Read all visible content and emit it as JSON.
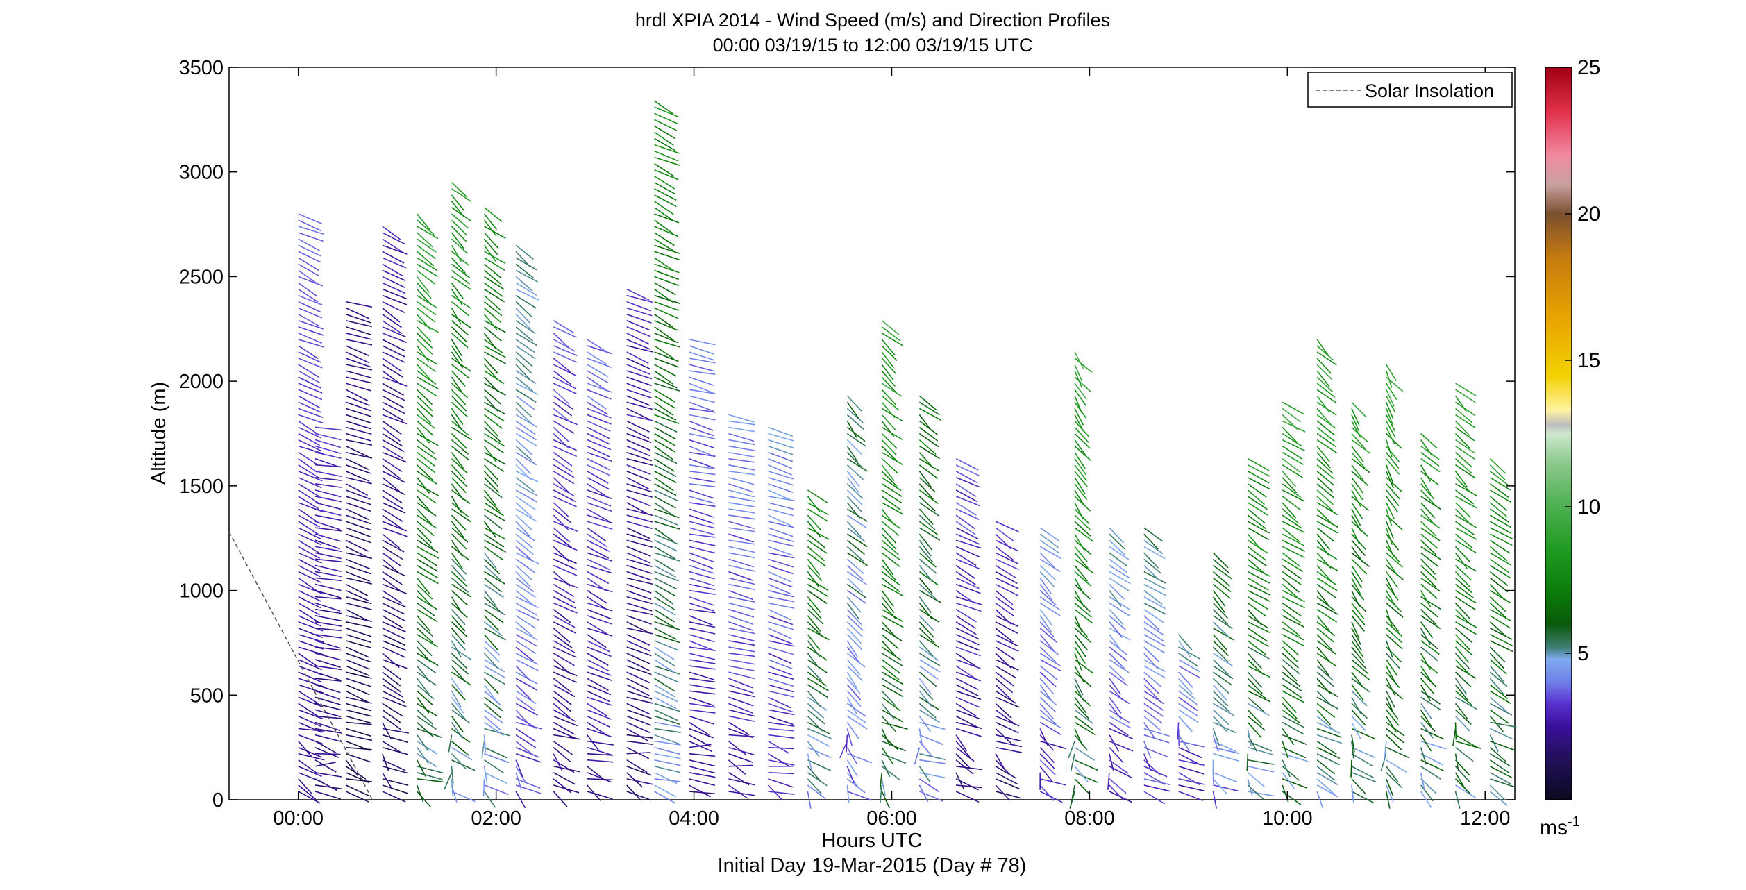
{
  "chart_data": {
    "type": "barb-profile",
    "title_line1": "hrdl XPIA 2014 - Wind Speed (m/s) and Direction Profiles",
    "title_line2": "00:00 03/19/15 to 12:00 03/19/15  UTC",
    "xlabel": "Hours UTC",
    "xlabel2": "Initial Day 19-Mar-2015 (Day # 78)",
    "ylabel": "Altitude (m)",
    "xlim_hours": [
      -0.7,
      12.3
    ],
    "ylim": [
      0,
      3500
    ],
    "xticks": [
      {
        "value": 0,
        "label": "00:00"
      },
      {
        "value": 2,
        "label": "02:00"
      },
      {
        "value": 4,
        "label": "04:00"
      },
      {
        "value": 6,
        "label": "06:00"
      },
      {
        "value": 8,
        "label": "08:00"
      },
      {
        "value": 10,
        "label": "10:00"
      },
      {
        "value": 12,
        "label": "12:00"
      }
    ],
    "yticks": [
      {
        "value": 0,
        "label": "0"
      },
      {
        "value": 500,
        "label": "500"
      },
      {
        "value": 1000,
        "label": "1000"
      },
      {
        "value": 1500,
        "label": "1500"
      },
      {
        "value": 2000,
        "label": "2000"
      },
      {
        "value": 2500,
        "label": "2500"
      },
      {
        "value": 3000,
        "label": "3000"
      },
      {
        "value": 3500,
        "label": "3500"
      }
    ],
    "legend": {
      "entry": "Solar Insolation",
      "position": "top-right",
      "style": "dashed"
    },
    "solar_insolation": [
      {
        "x": -0.7,
        "y": 1280
      },
      {
        "x": 0.75,
        "y": 0
      }
    ],
    "colorbar": {
      "range": [
        0,
        25
      ],
      "unit_label": "ms",
      "unit_exponent": "-1",
      "ticks": [
        {
          "value": 5,
          "label": "5"
        },
        {
          "value": 10,
          "label": "10"
        },
        {
          "value": 15,
          "label": "15"
        },
        {
          "value": 20,
          "label": "20"
        },
        {
          "value": 25,
          "label": "25"
        }
      ],
      "colors": [
        {
          "v": 0,
          "c": "#0b0a1e"
        },
        {
          "v": 1.5,
          "c": "#241060"
        },
        {
          "v": 2.5,
          "c": "#3a0f9a"
        },
        {
          "v": 3.3,
          "c": "#5a34cf"
        },
        {
          "v": 4.0,
          "c": "#6f7ee8"
        },
        {
          "v": 4.8,
          "c": "#7eaaf0"
        },
        {
          "v": 5.2,
          "c": "#3e7e74"
        },
        {
          "v": 6.0,
          "c": "#0a5a0a"
        },
        {
          "v": 7.0,
          "c": "#0a7a0a"
        },
        {
          "v": 8.5,
          "c": "#1f9a1f"
        },
        {
          "v": 10.0,
          "c": "#4caf50"
        },
        {
          "v": 11.5,
          "c": "#8cc98c"
        },
        {
          "v": 12.5,
          "c": "#cfe8cf"
        },
        {
          "v": 12.8,
          "c": "#bdbdbd"
        },
        {
          "v": 13.3,
          "c": "#fff2a0"
        },
        {
          "v": 14.5,
          "c": "#f2d000"
        },
        {
          "v": 16.5,
          "c": "#e8a300"
        },
        {
          "v": 18.5,
          "c": "#c67a10"
        },
        {
          "v": 20.0,
          "c": "#7a5030"
        },
        {
          "v": 21.0,
          "c": "#c9a0a0"
        },
        {
          "v": 22.0,
          "c": "#f08aa0"
        },
        {
          "v": 23.5,
          "c": "#e0304a"
        },
        {
          "v": 25.0,
          "c": "#a00015"
        }
      ]
    },
    "profiles": [
      {
        "t": 0.0,
        "top": 2800,
        "speed": 3.2,
        "dir": 300,
        "varSpeed": 0.4
      },
      {
        "t": 0.17,
        "top": 1800,
        "speed": 2.6,
        "dir": 275,
        "varSpeed": 0.6
      },
      {
        "t": 0.48,
        "top": 2400,
        "speed": 1.8,
        "dir": 290,
        "varSpeed": 0.8
      },
      {
        "t": 0.85,
        "top": 2750,
        "speed": 2.2,
        "dir": 305,
        "varSpeed": 1.0
      },
      {
        "t": 1.2,
        "top": 2800,
        "speed": 7.5,
        "dir": 320,
        "varSpeed": 1.5
      },
      {
        "t": 1.55,
        "top": 2950,
        "speed": 7.0,
        "dir": 325,
        "varSpeed": 1.8
      },
      {
        "t": 1.88,
        "top": 2850,
        "speed": 6.5,
        "dir": 320,
        "varSpeed": 2.0
      },
      {
        "t": 2.2,
        "top": 2650,
        "speed": 4.5,
        "dir": 315,
        "varSpeed": 1.2
      },
      {
        "t": 2.58,
        "top": 2300,
        "speed": 3.0,
        "dir": 310,
        "varSpeed": 0.9
      },
      {
        "t": 2.92,
        "top": 2200,
        "speed": 3.2,
        "dir": 300,
        "varSpeed": 0.9
      },
      {
        "t": 3.32,
        "top": 2450,
        "speed": 2.5,
        "dir": 290,
        "varSpeed": 1.0
      },
      {
        "t": 3.6,
        "top": 3350,
        "speed": 6.5,
        "dir": 300,
        "varSpeed": 1.5
      },
      {
        "t": 3.95,
        "top": 2200,
        "speed": 3.4,
        "dir": 280,
        "varSpeed": 0.8
      },
      {
        "t": 4.35,
        "top": 1850,
        "speed": 3.6,
        "dir": 280,
        "varSpeed": 1.0
      },
      {
        "t": 4.75,
        "top": 1800,
        "speed": 3.8,
        "dir": 285,
        "varSpeed": 1.2
      },
      {
        "t": 5.15,
        "top": 1500,
        "speed": 6.5,
        "dir": 320,
        "varSpeed": 1.5
      },
      {
        "t": 5.55,
        "top": 1950,
        "speed": 5.0,
        "dir": 325,
        "varSpeed": 2.0
      },
      {
        "t": 5.9,
        "top": 2300,
        "speed": 7.5,
        "dir": 320,
        "varSpeed": 2.0
      },
      {
        "t": 6.28,
        "top": 1950,
        "speed": 6.0,
        "dir": 320,
        "varSpeed": 2.0
      },
      {
        "t": 6.65,
        "top": 1650,
        "speed": 3.0,
        "dir": 300,
        "varSpeed": 1.2
      },
      {
        "t": 7.05,
        "top": 1350,
        "speed": 2.6,
        "dir": 310,
        "varSpeed": 1.0
      },
      {
        "t": 7.5,
        "top": 1300,
        "speed": 4.0,
        "dir": 320,
        "varSpeed": 1.2
      },
      {
        "t": 7.85,
        "top": 2150,
        "speed": 7.5,
        "dir": 330,
        "varSpeed": 2.0
      },
      {
        "t": 8.2,
        "top": 1300,
        "speed": 4.2,
        "dir": 320,
        "varSpeed": 1.2
      },
      {
        "t": 8.55,
        "top": 1300,
        "speed": 4.5,
        "dir": 315,
        "varSpeed": 1.2
      },
      {
        "t": 8.9,
        "top": 800,
        "speed": 4.0,
        "dir": 320,
        "varSpeed": 1.5
      },
      {
        "t": 9.25,
        "top": 1200,
        "speed": 5.5,
        "dir": 320,
        "varSpeed": 1.5
      },
      {
        "t": 9.6,
        "top": 1650,
        "speed": 7.0,
        "dir": 315,
        "varSpeed": 2.0
      },
      {
        "t": 9.95,
        "top": 1900,
        "speed": 7.5,
        "dir": 315,
        "varSpeed": 2.0
      },
      {
        "t": 10.3,
        "top": 2200,
        "speed": 7.5,
        "dir": 320,
        "varSpeed": 2.0
      },
      {
        "t": 10.65,
        "top": 1900,
        "speed": 7.0,
        "dir": 330,
        "varSpeed": 2.0
      },
      {
        "t": 11.0,
        "top": 2100,
        "speed": 7.5,
        "dir": 335,
        "varSpeed": 2.0
      },
      {
        "t": 11.35,
        "top": 1750,
        "speed": 7.0,
        "dir": 325,
        "varSpeed": 2.0
      },
      {
        "t": 11.7,
        "top": 2000,
        "speed": 7.5,
        "dir": 320,
        "varSpeed": 2.0
      },
      {
        "t": 12.05,
        "top": 1650,
        "speed": 7.0,
        "dir": 315,
        "varSpeed": 2.0
      }
    ]
  }
}
